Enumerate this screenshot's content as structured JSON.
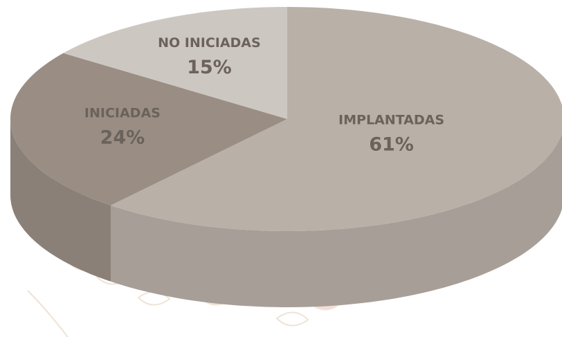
{
  "chart_data": {
    "type": "pie",
    "categories": [
      "IMPLANTADAS",
      "INICIADAS",
      "NO INICIADAS"
    ],
    "values": [
      61,
      24,
      15
    ],
    "value_labels": [
      "61%",
      "24%",
      "15%"
    ],
    "colors": [
      "#b9b0a8",
      "#9a8e84",
      "#cdc7c1"
    ]
  }
}
